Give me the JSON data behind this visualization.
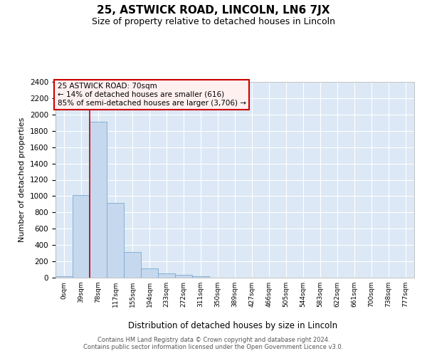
{
  "title": "25, ASTWICK ROAD, LINCOLN, LN6 7JX",
  "subtitle": "Size of property relative to detached houses in Lincoln",
  "xlabel": "Distribution of detached houses by size in Lincoln",
  "ylabel": "Number of detached properties",
  "bar_color": "#c5d8ee",
  "bar_edge_color": "#7aaad0",
  "background_color": "#dce8f5",
  "grid_color": "#ffffff",
  "categories": [
    "0sqm",
    "39sqm",
    "78sqm",
    "117sqm",
    "155sqm",
    "194sqm",
    "233sqm",
    "272sqm",
    "311sqm",
    "350sqm",
    "389sqm",
    "427sqm",
    "466sqm",
    "505sqm",
    "544sqm",
    "583sqm",
    "622sqm",
    "661sqm",
    "700sqm",
    "738sqm",
    "777sqm"
  ],
  "values": [
    20,
    1010,
    1910,
    920,
    315,
    110,
    55,
    35,
    20,
    0,
    0,
    0,
    0,
    0,
    0,
    0,
    0,
    0,
    0,
    0,
    0
  ],
  "ylim": [
    0,
    2400
  ],
  "yticks": [
    0,
    200,
    400,
    600,
    800,
    1000,
    1200,
    1400,
    1600,
    1800,
    2000,
    2200,
    2400
  ],
  "annotation_line1": "25 ASTWICK ROAD: 70sqm",
  "annotation_line2": "← 14% of detached houses are smaller (616)",
  "annotation_line3": "85% of semi-detached houses are larger (3,706) →",
  "vline_x": 2,
  "vline_color": "#cc0000",
  "annotation_box_facecolor": "#fff0f0",
  "annotation_box_edgecolor": "#cc0000",
  "footer_line1": "Contains HM Land Registry data © Crown copyright and database right 2024.",
  "footer_line2": "Contains public sector information licensed under the Open Government Licence v3.0."
}
